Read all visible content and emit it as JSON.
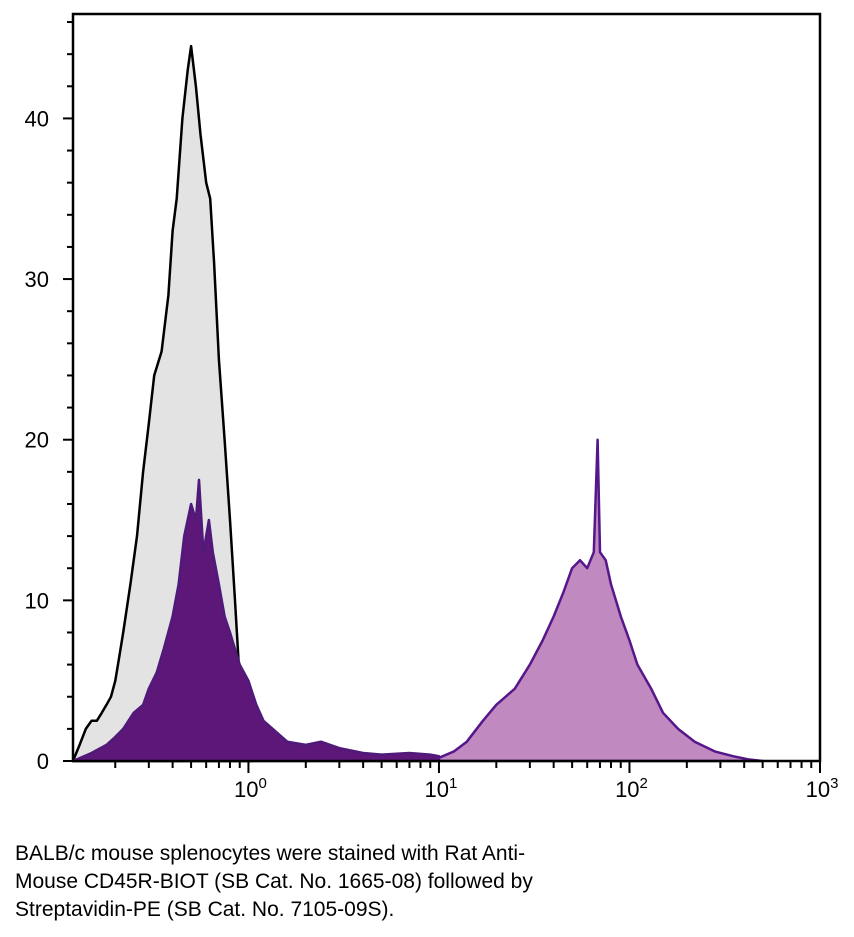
{
  "chart_data": {
    "type": "area",
    "x_scale": "log",
    "xlim": [
      0.12,
      1000
    ],
    "ylim": [
      0,
      46.5
    ],
    "x_ticks": [
      {
        "base": "10",
        "exp": "0"
      },
      {
        "base": "10",
        "exp": "1"
      },
      {
        "base": "10",
        "exp": "2"
      },
      {
        "base": "10",
        "exp": "3"
      }
    ],
    "y_ticks": [
      "0",
      "10",
      "20",
      "30",
      "40"
    ],
    "grid": false,
    "series": [
      {
        "style": "gray-filled-black-outline",
        "fill": "#e3e3e3",
        "stroke": "#000000",
        "points": [
          [
            0.12,
            0
          ],
          [
            0.13,
            1
          ],
          [
            0.14,
            2
          ],
          [
            0.15,
            2.5
          ],
          [
            0.16,
            2.5
          ],
          [
            0.17,
            3
          ],
          [
            0.18,
            3.5
          ],
          [
            0.19,
            4
          ],
          [
            0.2,
            5
          ],
          [
            0.21,
            6.5
          ],
          [
            0.22,
            8
          ],
          [
            0.24,
            11
          ],
          [
            0.26,
            14
          ],
          [
            0.28,
            18
          ],
          [
            0.3,
            21
          ],
          [
            0.32,
            24
          ],
          [
            0.35,
            25.5
          ],
          [
            0.38,
            29
          ],
          [
            0.4,
            33
          ],
          [
            0.42,
            35
          ],
          [
            0.45,
            40
          ],
          [
            0.48,
            43
          ],
          [
            0.5,
            44.5
          ],
          [
            0.53,
            42
          ],
          [
            0.56,
            39
          ],
          [
            0.6,
            36
          ],
          [
            0.63,
            35
          ],
          [
            0.66,
            31
          ],
          [
            0.7,
            25
          ],
          [
            0.75,
            20
          ],
          [
            0.8,
            15
          ],
          [
            0.85,
            10
          ],
          [
            0.9,
            5
          ],
          [
            0.95,
            2.5
          ],
          [
            1.0,
            0.5
          ],
          [
            1.05,
            0
          ]
        ]
      },
      {
        "style": "purple-filled",
        "fill": "#5c1778",
        "stroke": "#4f1a7a",
        "points": [
          [
            0.12,
            0
          ],
          [
            0.15,
            0.5
          ],
          [
            0.18,
            1
          ],
          [
            0.2,
            1.5
          ],
          [
            0.22,
            2
          ],
          [
            0.25,
            3
          ],
          [
            0.28,
            3.5
          ],
          [
            0.3,
            4.5
          ],
          [
            0.33,
            5.5
          ],
          [
            0.36,
            7
          ],
          [
            0.4,
            9
          ],
          [
            0.43,
            11
          ],
          [
            0.46,
            14
          ],
          [
            0.5,
            16
          ],
          [
            0.53,
            15
          ],
          [
            0.55,
            17.5
          ],
          [
            0.58,
            13
          ],
          [
            0.62,
            15
          ],
          [
            0.65,
            13
          ],
          [
            0.7,
            11
          ],
          [
            0.75,
            9
          ],
          [
            0.8,
            8
          ],
          [
            0.9,
            6
          ],
          [
            1.0,
            5
          ],
          [
            1.1,
            3.5
          ],
          [
            1.2,
            2.5
          ],
          [
            1.4,
            1.8
          ],
          [
            1.6,
            1.2
          ],
          [
            2.0,
            1.0
          ],
          [
            2.4,
            1.2
          ],
          [
            3.0,
            0.8
          ],
          [
            4.0,
            0.5
          ],
          [
            5.0,
            0.4
          ],
          [
            7.0,
            0.5
          ],
          [
            9.0,
            0.4
          ],
          [
            10,
            0.3
          ]
        ]
      },
      {
        "style": "mauve-filled-purple-outline",
        "fill": "#c089c0",
        "stroke": "#56178a",
        "points": [
          [
            10,
            0.2
          ],
          [
            12,
            0.6
          ],
          [
            14,
            1.2
          ],
          [
            17,
            2.5
          ],
          [
            20,
            3.5
          ],
          [
            25,
            4.5
          ],
          [
            30,
            6
          ],
          [
            35,
            7.5
          ],
          [
            40,
            9
          ],
          [
            45,
            10.5
          ],
          [
            50,
            12
          ],
          [
            55,
            12.5
          ],
          [
            60,
            12
          ],
          [
            65,
            13
          ],
          [
            68,
            20
          ],
          [
            70,
            13
          ],
          [
            75,
            12.5
          ],
          [
            80,
            11
          ],
          [
            90,
            9
          ],
          [
            100,
            7.5
          ],
          [
            110,
            6
          ],
          [
            130,
            4.5
          ],
          [
            150,
            3
          ],
          [
            180,
            2
          ],
          [
            220,
            1.2
          ],
          [
            280,
            0.6
          ],
          [
            350,
            0.3
          ],
          [
            420,
            0.1
          ],
          [
            500,
            0
          ]
        ]
      }
    ]
  },
  "caption": {
    "line1": "BALB/c mouse splenocytes were stained with Rat Anti-",
    "line2": "Mouse CD45R-BIOT (SB Cat. No. 1665-08) followed by",
    "line3": "Streptavidin-PE (SB Cat. No. 7105-09S)."
  }
}
